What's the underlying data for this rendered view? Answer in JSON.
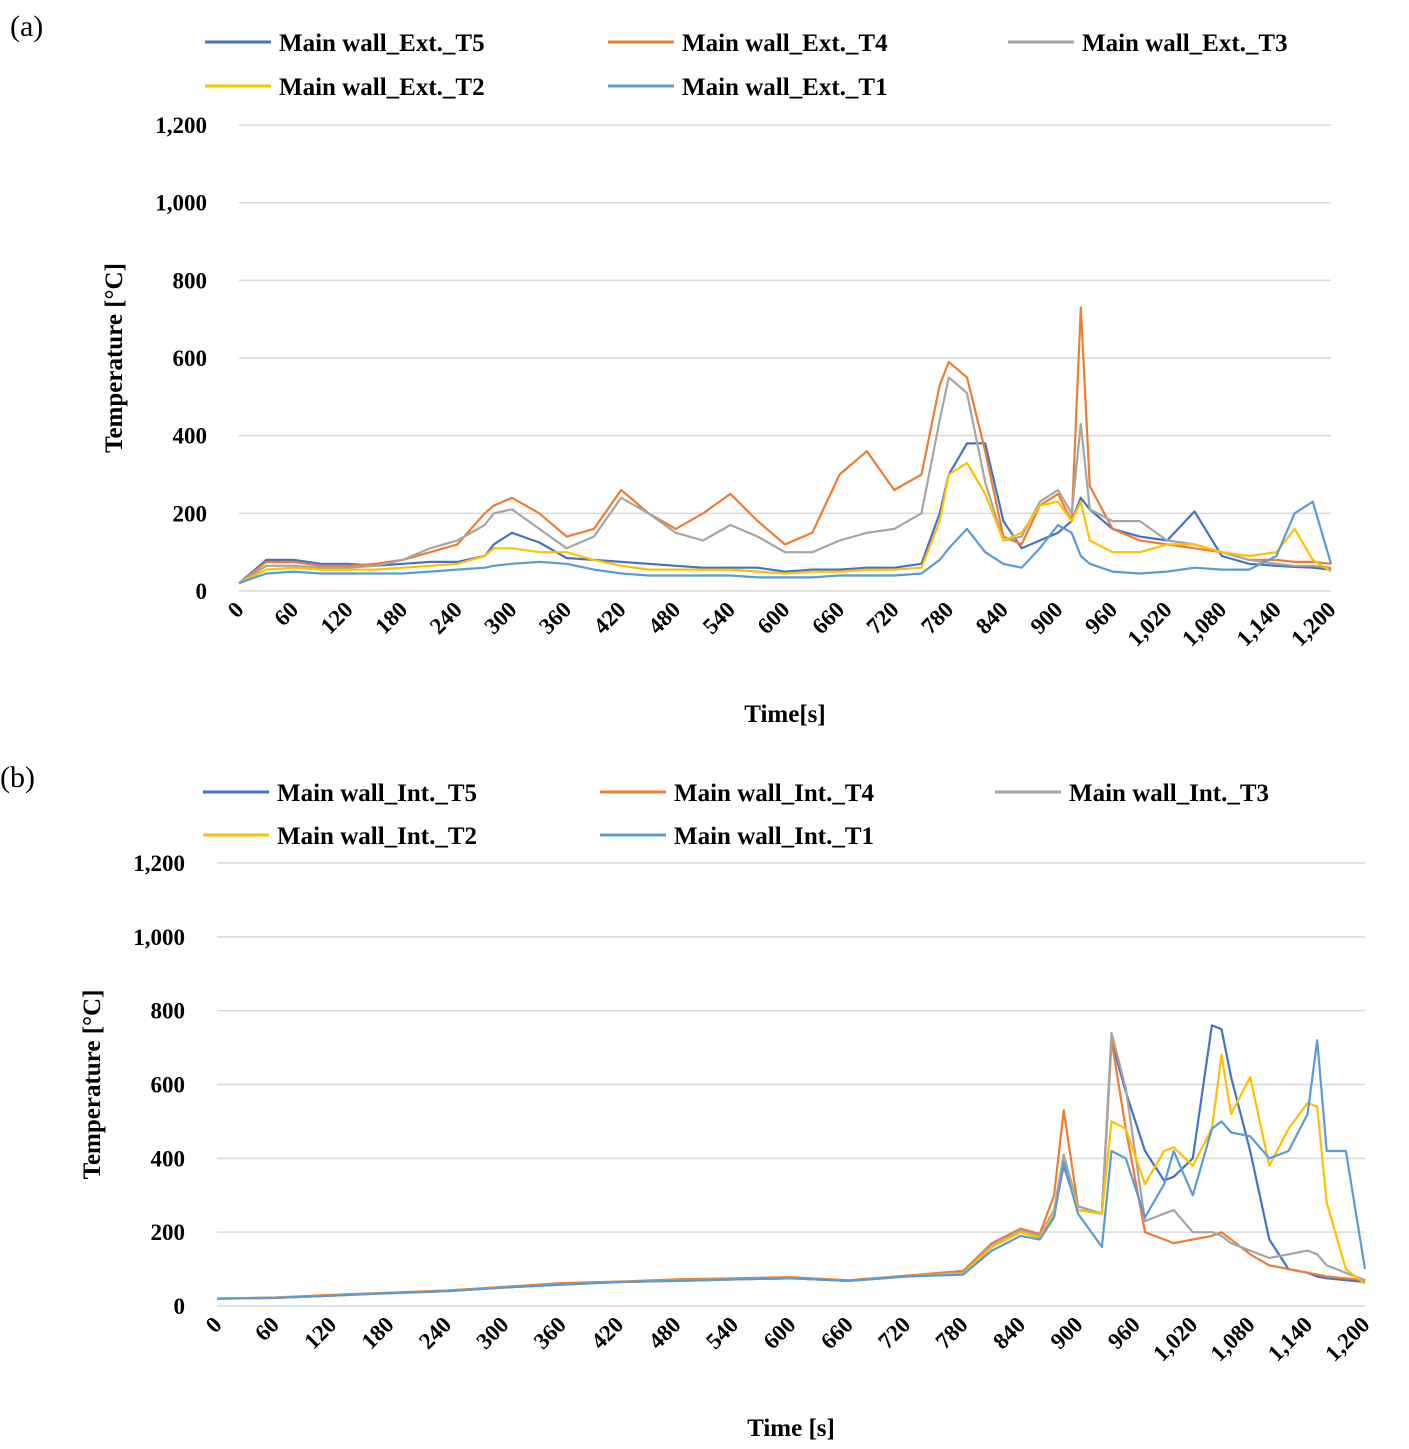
{
  "chart_data": [
    {
      "type": "line",
      "panel_label": "(a)",
      "title": "",
      "xlabel": "Time[s]",
      "ylabel": "Temperature [°C]",
      "xlim": [
        0,
        1200
      ],
      "ylim": [
        0,
        1200
      ],
      "grid": true,
      "legend_position": "top",
      "x_ticks": [
        "0",
        "60",
        "120",
        "180",
        "240",
        "300",
        "360",
        "420",
        "480",
        "540",
        "600",
        "660",
        "720",
        "780",
        "840",
        "900",
        "960",
        "1,020",
        "1,080",
        "1,140",
        "1,200"
      ],
      "y_ticks": [
        "0",
        "200",
        "400",
        "600",
        "800",
        "1,000",
        "1,200"
      ],
      "x": [
        0,
        30,
        60,
        90,
        120,
        150,
        180,
        210,
        240,
        270,
        280,
        300,
        330,
        360,
        390,
        420,
        450,
        480,
        510,
        540,
        570,
        600,
        630,
        660,
        690,
        720,
        750,
        770,
        780,
        800,
        820,
        840,
        860,
        880,
        900,
        915,
        925,
        935,
        960,
        990,
        1020,
        1050,
        1080,
        1110,
        1140,
        1160,
        1180,
        1200
      ],
      "series": [
        {
          "name": "Main wall_Ext._T5",
          "color": "#4472c4",
          "values": [
            20,
            80,
            80,
            70,
            70,
            65,
            70,
            75,
            75,
            90,
            120,
            150,
            125,
            85,
            80,
            75,
            70,
            65,
            60,
            60,
            60,
            50,
            55,
            55,
            60,
            60,
            70,
            200,
            300,
            380,
            380,
            180,
            110,
            130,
            150,
            180,
            240,
            210,
            160,
            140,
            130,
            205,
            90,
            70,
            65,
            62,
            60,
            55
          ]
        },
        {
          "name": "Main wall_Ext._T4",
          "color": "#ed7d31",
          "values": [
            20,
            75,
            75,
            65,
            65,
            70,
            80,
            100,
            120,
            200,
            220,
            240,
            200,
            140,
            160,
            260,
            200,
            160,
            200,
            250,
            180,
            120,
            150,
            300,
            360,
            260,
            300,
            530,
            590,
            550,
            360,
            140,
            120,
            220,
            250,
            180,
            730,
            270,
            160,
            130,
            120,
            110,
            100,
            80,
            80,
            75,
            75,
            70
          ]
        },
        {
          "name": "Main wall_Ext._T3",
          "color": "#a5a5a5",
          "values": [
            20,
            65,
            65,
            60,
            60,
            65,
            80,
            110,
            130,
            170,
            200,
            210,
            160,
            110,
            140,
            240,
            200,
            150,
            130,
            170,
            140,
            100,
            100,
            130,
            150,
            160,
            200,
            440,
            550,
            510,
            280,
            130,
            140,
            230,
            260,
            200,
            430,
            210,
            180,
            180,
            130,
            120,
            100,
            80,
            70,
            65,
            65,
            60
          ]
        },
        {
          "name": "Main wall_Ext._T2",
          "color": "#ffc000",
          "values": [
            20,
            55,
            60,
            55,
            55,
            55,
            60,
            65,
            70,
            90,
            110,
            110,
            100,
            100,
            80,
            65,
            55,
            55,
            55,
            55,
            50,
            45,
            50,
            50,
            55,
            55,
            60,
            180,
            300,
            330,
            250,
            130,
            150,
            220,
            230,
            180,
            230,
            130,
            100,
            100,
            120,
            120,
            100,
            90,
            100,
            160,
            80,
            50
          ]
        },
        {
          "name": "Main wall_Ext._T1",
          "color": "#5b9bd5",
          "values": [
            20,
            45,
            50,
            45,
            45,
            45,
            45,
            50,
            55,
            60,
            65,
            70,
            75,
            70,
            55,
            45,
            40,
            40,
            40,
            40,
            35,
            35,
            35,
            40,
            40,
            40,
            45,
            80,
            110,
            160,
            100,
            70,
            60,
            110,
            170,
            150,
            90,
            70,
            50,
            45,
            50,
            60,
            55,
            55,
            90,
            200,
            230,
            70
          ]
        }
      ]
    },
    {
      "type": "line",
      "panel_label": "(b)",
      "title": "",
      "xlabel": "Time [s]",
      "ylabel": "Temperature [°C]",
      "xlim": [
        0,
        1200
      ],
      "ylim": [
        0,
        1200
      ],
      "grid": true,
      "legend_position": "top",
      "x_ticks": [
        "0",
        "60",
        "120",
        "180",
        "240",
        "300",
        "360",
        "420",
        "480",
        "540",
        "600",
        "660",
        "720",
        "780",
        "840",
        "900",
        "960",
        "1,020",
        "1,080",
        "1,140",
        "1,200"
      ],
      "y_ticks": [
        "0",
        "200",
        "400",
        "600",
        "800",
        "1,000",
        "1,200"
      ],
      "x": [
        0,
        60,
        120,
        180,
        240,
        300,
        360,
        420,
        480,
        540,
        600,
        660,
        720,
        780,
        810,
        840,
        860,
        875,
        885,
        900,
        925,
        935,
        950,
        970,
        990,
        1000,
        1020,
        1040,
        1050,
        1060,
        1080,
        1100,
        1120,
        1140,
        1150,
        1160,
        1180,
        1200
      ],
      "series": [
        {
          "name": "Main wall_Int._T5",
          "color": "#4472c4",
          "values": [
            20,
            22,
            28,
            35,
            40,
            50,
            58,
            65,
            68,
            72,
            75,
            68,
            80,
            88,
            160,
            200,
            185,
            250,
            380,
            260,
            250,
            720,
            580,
            420,
            340,
            350,
            400,
            760,
            750,
            620,
            420,
            180,
            100,
            90,
            80,
            75,
            70,
            65
          ]
        },
        {
          "name": "Main wall_Int._T4",
          "color": "#ed7d31",
          "values": [
            20,
            23,
            30,
            36,
            42,
            52,
            62,
            66,
            72,
            75,
            78,
            70,
            82,
            95,
            170,
            210,
            195,
            300,
            530,
            270,
            250,
            720,
            480,
            200,
            180,
            170,
            180,
            190,
            200,
            180,
            140,
            110,
            100,
            90,
            85,
            80,
            75,
            70
          ]
        },
        {
          "name": "Main wall_Int._T3",
          "color": "#a5a5a5",
          "values": [
            20,
            22,
            28,
            35,
            40,
            50,
            58,
            65,
            70,
            72,
            75,
            68,
            80,
            90,
            165,
            205,
            190,
            260,
            410,
            270,
            250,
            740,
            590,
            230,
            250,
            260,
            200,
            200,
            190,
            170,
            150,
            130,
            140,
            150,
            140,
            110,
            90,
            70
          ]
        },
        {
          "name": "Main wall_Int._T2",
          "color": "#ffc000",
          "values": [
            20,
            22,
            28,
            35,
            40,
            50,
            58,
            65,
            68,
            72,
            75,
            68,
            80,
            88,
            160,
            200,
            185,
            250,
            390,
            260,
            250,
            500,
            480,
            330,
            420,
            430,
            380,
            480,
            680,
            520,
            620,
            380,
            480,
            550,
            540,
            280,
            100,
            60
          ]
        },
        {
          "name": "Main wall_Int._T1",
          "color": "#5b9bd5",
          "values": [
            20,
            22,
            28,
            35,
            40,
            50,
            58,
            65,
            68,
            72,
            75,
            68,
            80,
            85,
            150,
            190,
            180,
            240,
            390,
            250,
            160,
            420,
            400,
            240,
            330,
            420,
            300,
            480,
            500,
            470,
            460,
            400,
            420,
            520,
            720,
            420,
            420,
            100
          ]
        }
      ]
    }
  ]
}
